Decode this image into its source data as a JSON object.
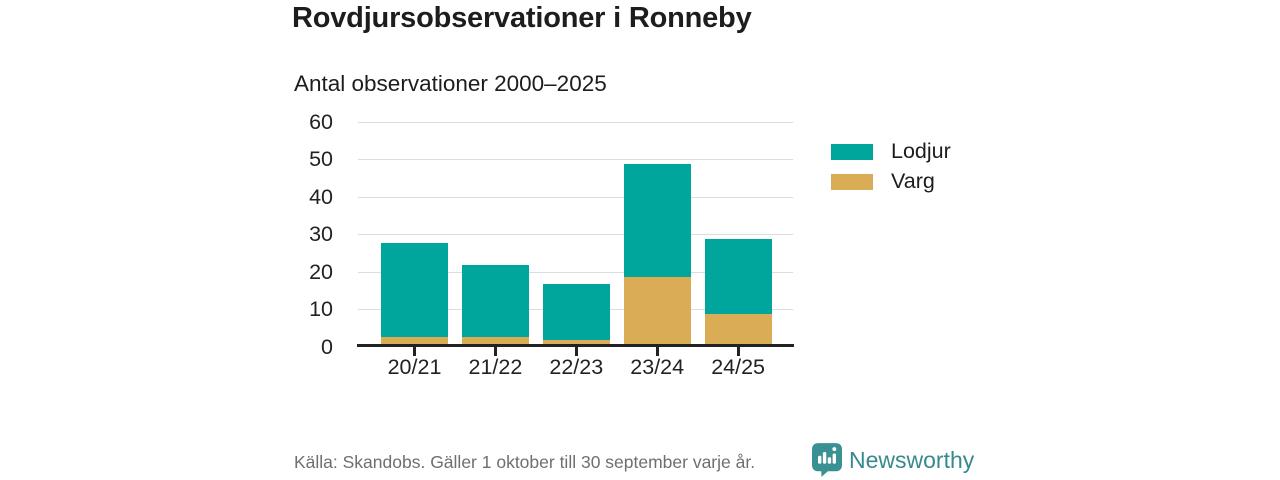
{
  "chart_data": {
    "type": "bar",
    "stacked": true,
    "title": "Rovdjursobservationer i Ronneby",
    "subtitle": "Antal observationer 2000–2025",
    "categories": [
      "20/21",
      "21/22",
      "22/23",
      "23/24",
      "24/25"
    ],
    "series": [
      {
        "name": "Varg",
        "color": "#D9AC55",
        "values": [
          2,
          2,
          1,
          18,
          8
        ]
      },
      {
        "name": "Lodjur",
        "color": "#00A69B",
        "values": [
          25,
          19,
          15,
          30,
          20
        ]
      }
    ],
    "stack_totals": [
      27,
      21,
      16,
      48,
      28
    ],
    "ylim": [
      0,
      60
    ],
    "yticks": [
      0,
      10,
      20,
      30,
      40,
      50,
      60
    ],
    "xlabel": "",
    "ylabel": "",
    "grid": true,
    "legend_position": "right",
    "source": "Källa: Skandobs. Gäller 1 oktober till 30 september varje år."
  },
  "legend": {
    "items": [
      {
        "label": "Lodjur",
        "color": "#00A69B"
      },
      {
        "label": "Varg",
        "color": "#D9AC55"
      }
    ]
  },
  "footer": {
    "source": "Källa: Skandobs. Gäller 1 oktober till 30 september varje år.",
    "brand": "Newsworthy"
  },
  "colors": {
    "lodjur": "#00A69B",
    "varg": "#D9AC55",
    "axis": "#222222",
    "gridline": "#DDDDDD",
    "text": "#1D1D1B",
    "muted_text": "#6F6F6F",
    "brand_teal": "#37898C"
  },
  "icons": {
    "brand_logo": "newsworthy-speech-bubble-bar-chart-icon"
  }
}
